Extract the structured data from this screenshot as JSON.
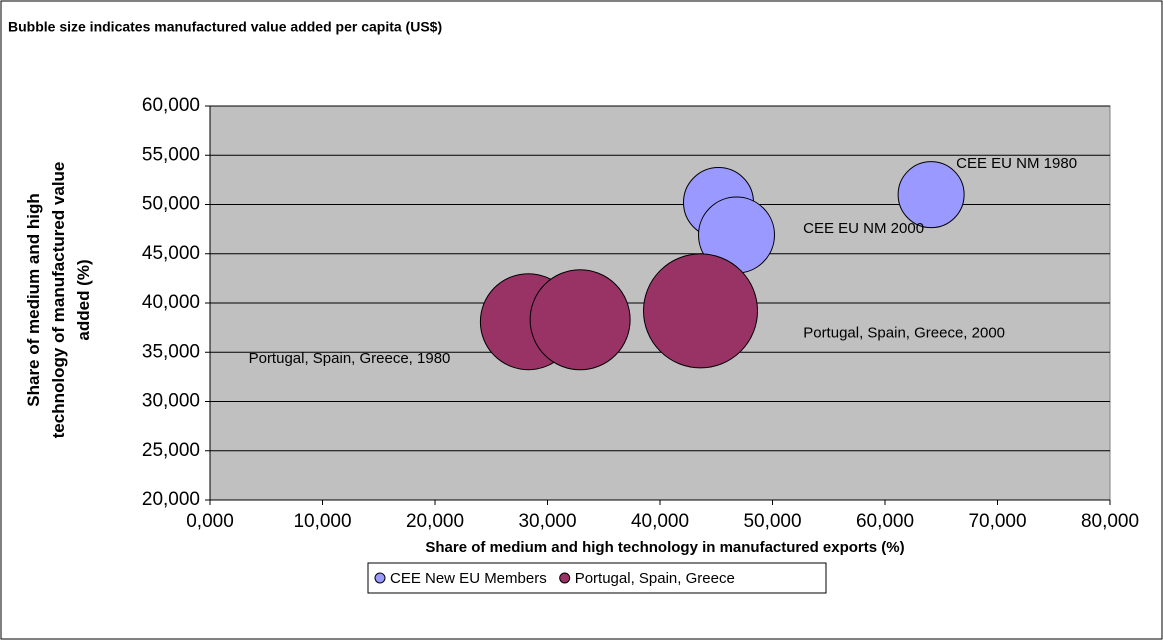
{
  "chart_data": {
    "type": "bubble",
    "title": "Bubble size indicates manufactured value added per capita (US$)",
    "xlabel": "Share of medium and high technology in manufactured exports (%)",
    "ylabel": [
      "Share of medium and high",
      "technology of manufactured value",
      "added (%)"
    ],
    "xlim": [
      0,
      80
    ],
    "ylim": [
      20,
      60
    ],
    "xticks": [
      {
        "value": 0,
        "label": "0,000"
      },
      {
        "value": 10,
        "label": "10,000"
      },
      {
        "value": 20,
        "label": "20,000"
      },
      {
        "value": 30,
        "label": "30,000"
      },
      {
        "value": 40,
        "label": "40,000"
      },
      {
        "value": 50,
        "label": "50,000"
      },
      {
        "value": 60,
        "label": "60,000"
      },
      {
        "value": 70,
        "label": "70,000"
      },
      {
        "value": 80,
        "label": "80,000"
      }
    ],
    "yticks": [
      {
        "value": 20,
        "label": "20,000"
      },
      {
        "value": 25,
        "label": "25,000"
      },
      {
        "value": 30,
        "label": "30,000"
      },
      {
        "value": 35,
        "label": "35,000"
      },
      {
        "value": 40,
        "label": "40,000"
      },
      {
        "value": 45,
        "label": "45,000"
      },
      {
        "value": 50,
        "label": "50,000"
      },
      {
        "value": 55,
        "label": "55,000"
      },
      {
        "value": 60,
        "label": "60,000"
      }
    ],
    "grid": true,
    "series": [
      {
        "name": "CEE New EU Members",
        "color": "#9999ff",
        "x": [
          45.2,
          46.8,
          64.1
        ],
        "values": [
          50.2,
          46.9,
          51.0
        ],
        "sizes": [
          1225,
          1444,
          1089
        ]
      },
      {
        "name": "Portugal, Spain, Greece",
        "color": "#993366",
        "x": [
          28.3,
          32.9,
          43.6
        ],
        "values": [
          38.1,
          38.3,
          39.2
        ],
        "sizes": [
          2304,
          2500,
          3249
        ]
      }
    ],
    "annotations": [
      {
        "text": "CEE EU NM 1980",
        "x": 71.7,
        "y": 54.1
      },
      {
        "text": "CEE EU  NM 2000",
        "x": 58.1,
        "y": 47.5
      },
      {
        "text": "Portugal, Spain, Greece, 2000",
        "x": 61.7,
        "y": 36.9
      },
      {
        "text": "Portugal, Spain, Greece, 1980",
        "x": 12.4,
        "y": 34.3
      }
    ]
  }
}
